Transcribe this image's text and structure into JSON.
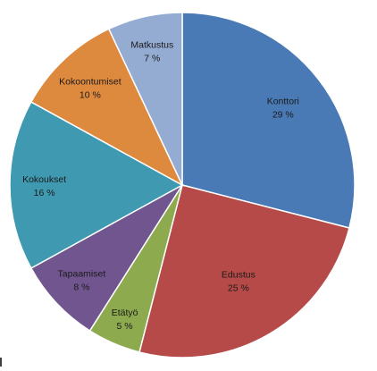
{
  "chart_data": {
    "type": "pie",
    "title": "",
    "value_unit": "%",
    "start": "12 o'clock",
    "direction": "clockwise",
    "border_color": "#ffffff",
    "categories": [
      "Konttori",
      "Edustus",
      "Etätyö",
      "Tapaamiset",
      "Kokoukset",
      "Kokoontumiset",
      "Matkustus"
    ],
    "values": [
      29,
      25,
      5,
      8,
      16,
      10,
      7
    ],
    "labels": [
      "29 %",
      "25 %",
      "5 %",
      "8 %",
      "16 %",
      "10 %",
      "7 %"
    ],
    "colors": [
      "#4a7ab5",
      "#b54a48",
      "#8daa4f",
      "#71558f",
      "#3f9ab1",
      "#de8a3e",
      "#94abd2"
    ]
  }
}
